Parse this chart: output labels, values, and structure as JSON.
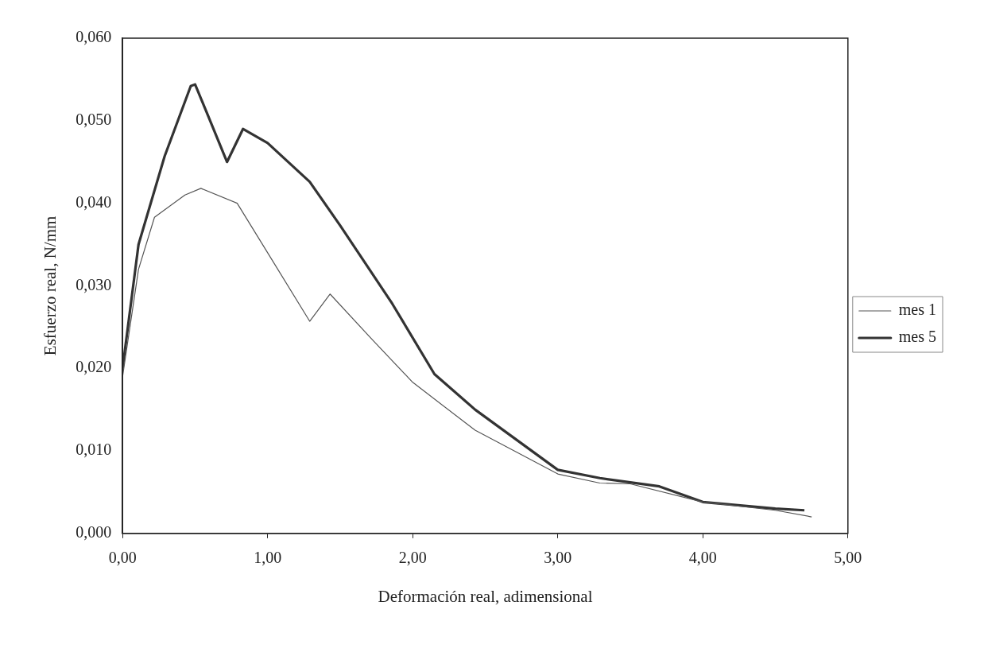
{
  "chart_data": {
    "type": "line",
    "xlabel": "Deformación real, adimensional",
    "ylabel": "Esfuerzo real, N/mm",
    "xlim": [
      0,
      5
    ],
    "ylim": [
      0,
      0.06
    ],
    "xticks": [
      {
        "value": 0,
        "label": "0,00"
      },
      {
        "value": 1,
        "label": "1,00"
      },
      {
        "value": 2,
        "label": "2,00"
      },
      {
        "value": 3,
        "label": "3,00"
      },
      {
        "value": 4,
        "label": "4,00"
      },
      {
        "value": 5,
        "label": "5,00"
      }
    ],
    "yticks": [
      {
        "value": 0,
        "label": "0,000"
      },
      {
        "value": 0.01,
        "label": "0,010"
      },
      {
        "value": 0.02,
        "label": "0,020"
      },
      {
        "value": 0.03,
        "label": "0,030"
      },
      {
        "value": 0.04,
        "label": "0,040"
      },
      {
        "value": 0.05,
        "label": "0,050"
      },
      {
        "value": 0.06,
        "label": "0,060"
      }
    ],
    "grid": false,
    "legend": "right",
    "marker": "none",
    "line_style": "solid",
    "series": [
      {
        "name": "mes 1",
        "color": "#555555",
        "x": [
          0,
          0.11,
          0.22,
          0.43,
          0.54,
          0.79,
          1.0,
          1.29,
          1.43,
          1.72,
          2.0,
          2.43,
          3.0,
          3.29,
          3.5,
          4.0,
          4.5,
          4.75
        ],
        "values": [
          0.019,
          0.032,
          0.0383,
          0.041,
          0.0418,
          0.04,
          0.034,
          0.0257,
          0.029,
          0.0235,
          0.0183,
          0.0125,
          0.0072,
          0.0061,
          0.006,
          0.0038,
          0.0028,
          0.002
        ]
      },
      {
        "name": "mes 5",
        "color": "#333333",
        "x": [
          0,
          0.11,
          0.29,
          0.47,
          0.5,
          0.58,
          0.72,
          0.83,
          1.0,
          1.29,
          1.5,
          1.86,
          2.15,
          2.43,
          3.0,
          3.29,
          3.7,
          4.0,
          4.5,
          4.7
        ],
        "values": [
          0.02,
          0.035,
          0.0457,
          0.0542,
          0.0544,
          0.051,
          0.045,
          0.049,
          0.0473,
          0.0426,
          0.0373,
          0.0278,
          0.0193,
          0.015,
          0.0077,
          0.0067,
          0.0057,
          0.0038,
          0.003,
          0.0028
        ]
      }
    ]
  }
}
